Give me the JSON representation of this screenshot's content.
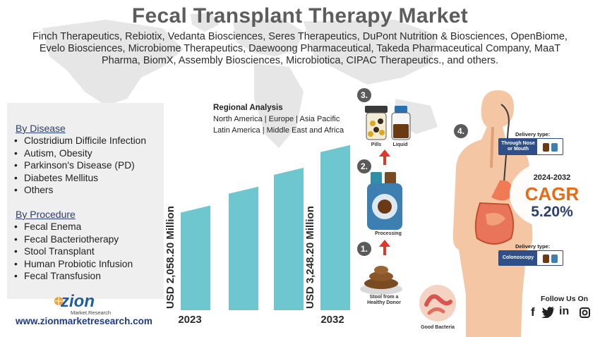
{
  "header": {
    "title": "Fecal Transplant Therapy Market",
    "companies": "Finch Therapeutics, Rebiotix, Vedanta Biosciences, Seres Therapeutics, DuPont Nutrition & Biosciences, OpenBiome, Evelo Biosciences, Microbiome Therapeutics, Daewoong Pharmaceutical, Takeda Pharmaceutical Company, MaaT Pharma, BiomX, Assembly Biosciences, Microbiotica, CIPAC Therapeutics., and others."
  },
  "segments": {
    "disease": {
      "title": "By Disease",
      "items": [
        "Clostridium Difficile Infection",
        "Autism, Obesity",
        "Parkinson's Disease (PD)",
        "Diabetes Mellitus",
        "Others"
      ]
    },
    "procedure": {
      "title": "By Procedure",
      "items": [
        "Fecal Enema",
        "Fecal Bacteriotherapy",
        "Stool Transplant",
        "Human Probiotic Infusion",
        "Fecal Transfusion"
      ]
    }
  },
  "regional": {
    "title": "Regional Analysis",
    "line1": "North America | Europe | Asia Pacific",
    "line2": "Latin America | Middle East and Africa"
  },
  "chart_data": {
    "type": "bar",
    "categories": [
      "2023",
      "",
      "",
      "2032"
    ],
    "values": [
      2058.2,
      2430,
      2800,
      3248.2
    ],
    "value_labels": [
      "USD 2,058.20 Million",
      "",
      "",
      "USD 3,248.20 Million"
    ],
    "ylim": [
      0,
      3300
    ],
    "bar_color": "#6ec6cf",
    "grid": false
  },
  "cagr": {
    "years": "2024-2032",
    "label": "CAGR",
    "value": "5.20%",
    "accent_color": "#e86a14"
  },
  "process": {
    "steps": [
      {
        "number": "1.",
        "caption": "Stool from a Healthy Donor"
      },
      {
        "number": "2.",
        "caption": "Processing"
      },
      {
        "number": "3.",
        "caption_left": "Pills",
        "caption_right": "Liquid"
      },
      {
        "number": "4."
      }
    ],
    "good_bacteria": "Good Bacteria",
    "delivery_label": "Delivery type:",
    "delivery_top": "Through Nose or Mouth",
    "delivery_bottom": "Colonoscopy"
  },
  "branding": {
    "logo_text": "zion",
    "logo_sub": "Market.Research",
    "website": "www.zionmarketresearch.com",
    "follow": "Follow Us On",
    "social_icons": [
      "facebook-icon",
      "twitter-icon",
      "linkedin-icon",
      "instagram-icon"
    ]
  }
}
